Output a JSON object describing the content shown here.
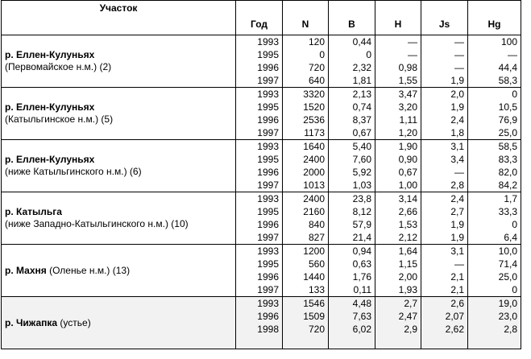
{
  "headers": [
    "Участок",
    "Год",
    "N",
    "B",
    "H",
    "Js",
    "Hg"
  ],
  "groups": [
    {
      "river": "р. Еллен-Кулуньях",
      "detail": "(Первомайское н.м.) (2)",
      "inline": false,
      "rows": [
        [
          "1993",
          "120",
          "0,44",
          "—",
          "—",
          "100"
        ],
        [
          "1995",
          "0",
          "0",
          "—",
          "—",
          "—"
        ],
        [
          "1996",
          "720",
          "2,32",
          "0,98",
          "—",
          "44,4"
        ],
        [
          "1997",
          "640",
          "1,81",
          "1,55",
          "1,9",
          "58,3"
        ]
      ]
    },
    {
      "river": "р. Еллен-Кулуньях",
      "detail": "(Катыльгинское н.м.) (5)",
      "inline": false,
      "rows": [
        [
          "1993",
          "3320",
          "2,13",
          "3,47",
          "2,0",
          "0"
        ],
        [
          "1995",
          "1520",
          "0,74",
          "3,20",
          "1,9",
          "10,5"
        ],
        [
          "1996",
          "2536",
          "8,37",
          "1,11",
          "2,4",
          "76,9"
        ],
        [
          "1997",
          "1173",
          "0,67",
          "1,20",
          "1,8",
          "25,0"
        ]
      ]
    },
    {
      "river": "р. Еллен-Кулуньях",
      "detail": "(ниже Катыльгинского н.м.) (6)",
      "inline": false,
      "rows": [
        [
          "1993",
          "1640",
          "5,40",
          "1,90",
          "3,1",
          "58,5"
        ],
        [
          "1995",
          "2400",
          "7,60",
          "0,90",
          "3,4",
          "83,3"
        ],
        [
          "1996",
          "2000",
          "5,92",
          "0,67",
          "—",
          "82,0"
        ],
        [
          "1997",
          "1013",
          "1,03",
          "1,00",
          "2,8",
          "84,2"
        ]
      ]
    },
    {
      "river": "р. Катыльга",
      "detail": "(ниже Западно-Катыльгинского н.м.) (10)",
      "inline": false,
      "rows": [
        [
          "1993",
          "2400",
          "23,8",
          "3,14",
          "2,4",
          "1,7"
        ],
        [
          "1995",
          "2160",
          "8,12",
          "2,66",
          "2,7",
          "33,3"
        ],
        [
          "1996",
          "840",
          "57,9",
          "1,53",
          "1,9",
          "0"
        ],
        [
          "1997",
          "827",
          "21,4",
          "2,12",
          "1,9",
          "6,4"
        ]
      ]
    },
    {
      "river": "р. Махня",
      "detail": "(Оленье н.м.) (13)",
      "inline": true,
      "rows": [
        [
          "1993",
          "1200",
          "0,94",
          "1,64",
          "3,1",
          "10,0"
        ],
        [
          "1995",
          "560",
          "0,63",
          "1,15",
          "—",
          "71,4"
        ],
        [
          "1996",
          "1440",
          "1,76",
          "2,00",
          "2,1",
          "25,0"
        ],
        [
          "1997",
          "133",
          "0,11",
          "1,93",
          "2,1",
          "0"
        ]
      ]
    },
    {
      "river": "р. Чижапка",
      "detail": "(устье)",
      "inline": true,
      "shaded": true,
      "rows": [
        [
          "1993",
          "1546",
          "4,48",
          "2,7",
          "2,6",
          "19,0"
        ],
        [
          "1996",
          "1509",
          "7,63",
          "2,47",
          "2,07",
          "23,0"
        ],
        [
          "1998",
          "720",
          "6,02",
          "2,9",
          "2,62",
          "2,8"
        ]
      ]
    }
  ]
}
